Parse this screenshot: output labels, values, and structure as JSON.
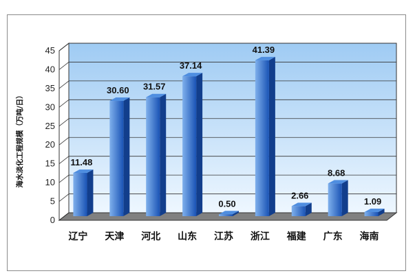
{
  "chart_data": {
    "type": "bar",
    "title": "",
    "xlabel": "",
    "ylabel": "海水淡化工程规模（万吨/日）",
    "categories": [
      "辽宁",
      "天津",
      "河北",
      "山东",
      "江苏",
      "浙江",
      "福建",
      "广东",
      "海南"
    ],
    "values": [
      11.48,
      30.6,
      31.57,
      37.14,
      0.5,
      41.39,
      2.66,
      8.68,
      1.09
    ],
    "data_labels": [
      "11.48",
      "30.60",
      "31.57",
      "37.14",
      "0.50",
      "41.39",
      "2.66",
      "8.68",
      "1.09"
    ],
    "ylim": [
      0,
      45
    ],
    "yticks": [
      "0",
      "5",
      "10",
      "15",
      "20",
      "25",
      "30",
      "35",
      "40",
      "45"
    ],
    "grid": true,
    "style": "3d",
    "colors": {
      "bar_front_light": "#7fb0ec",
      "bar_front_dark": "#1a53b5",
      "bar_side": "#123e8c",
      "bar_top": "#4f8ee0",
      "wall_top": "#9fcbf3",
      "wall_bottom": "#eef7ff",
      "floor": "#808080"
    }
  }
}
